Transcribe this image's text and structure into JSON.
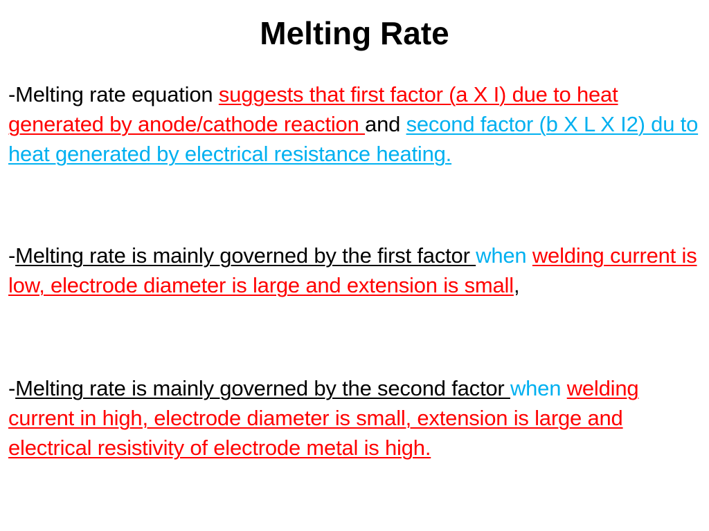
{
  "colors": {
    "red": "#ff0000",
    "cyan": "#00b0f0",
    "text": "#000000",
    "background": "#ffffff"
  },
  "title": "Melting Rate",
  "paragraphs": [
    {
      "segments": [
        "-Melting rate equation ",
        "suggests that first factor (a X I) due to heat generated by anode/cathode reaction ",
        "and ",
        "second factor (b X L X I2) du to heat generated by electrical resistance heating."
      ]
    },
    {
      "segments": [
        "-",
        "Melting rate is mainly governed by the first factor ",
        "when ",
        "welding current is low, electrode diameter is large and extension is small",
        ","
      ]
    },
    {
      "segments": [
        "-",
        "Melting rate is mainly governed by the second factor ",
        "when ",
        "welding current in high, electrode diameter is small, extension is large and electrical resistivity of electrode metal is high."
      ]
    }
  ]
}
